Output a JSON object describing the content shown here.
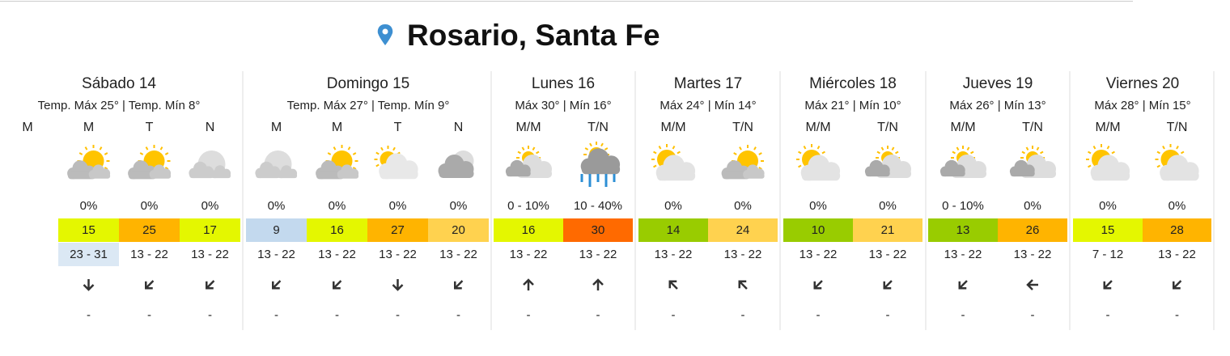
{
  "header": {
    "title": "Rosario, Santa Fe"
  },
  "days": [
    {
      "name": "Sábado 14",
      "summary": "Temp. Máx 25° | Temp. Mín 8°",
      "periods": [
        {
          "label": "M"
        },
        {
          "label": "M",
          "rain": "0%",
          "temp": 15,
          "temp_color": "#e4f700",
          "range": "23 - 31",
          "range_color": "#dbe8f4",
          "extra": "-"
        },
        {
          "label": "T",
          "rain": "0%",
          "temp": 25,
          "temp_color": "#ffb400",
          "range": "13 - 22",
          "extra": "-"
        },
        {
          "label": "N",
          "rain": "0%",
          "temp": 17,
          "temp_color": "#e4f700",
          "range": "13 - 22",
          "extra": "-"
        }
      ]
    },
    {
      "name": "Domingo 15",
      "summary": "Temp. Máx 27° | Temp. Mín 9°",
      "periods": [
        {
          "label": "M",
          "rain": "0%",
          "temp": 9,
          "temp_color": "#c3d9ee",
          "range": "13 - 22",
          "extra": "-"
        },
        {
          "label": "M",
          "rain": "0%",
          "temp": 16,
          "temp_color": "#e4f700",
          "range": "13 - 22",
          "extra": "-"
        },
        {
          "label": "T",
          "rain": "0%",
          "temp": 27,
          "temp_color": "#ffb400",
          "range": "13 - 22",
          "extra": "-"
        },
        {
          "label": "N",
          "rain": "0%",
          "temp": 20,
          "temp_color": "#ffd24f",
          "range": "13 - 22",
          "extra": "-"
        }
      ]
    },
    {
      "name": "Lunes 16",
      "summary": "Máx 30° | Mín 16°",
      "periods": [
        {
          "label": "M/M",
          "rain": "0 - 10%",
          "temp": 16,
          "temp_color": "#e4f700",
          "range": "13 - 22",
          "extra": "-"
        },
        {
          "label": "T/N",
          "rain": "10 - 40%",
          "temp": 30,
          "temp_color": "#ff6a00",
          "range": "13 - 22",
          "extra": "-"
        }
      ]
    },
    {
      "name": "Martes 17",
      "summary": "Máx 24° | Mín 14°",
      "periods": [
        {
          "label": "M/M",
          "rain": "0%",
          "temp": 14,
          "temp_color": "#99cc00",
          "range": "13 - 22",
          "extra": "-"
        },
        {
          "label": "T/N",
          "rain": "0%",
          "temp": 24,
          "temp_color": "#ffd24f",
          "range": "13 - 22",
          "extra": "-"
        }
      ]
    },
    {
      "name": "Miércoles 18",
      "summary": "Máx 21° | Mín 10°",
      "periods": [
        {
          "label": "M/M",
          "rain": "0%",
          "temp": 10,
          "temp_color": "#99cc00",
          "range": "13 - 22",
          "extra": "-"
        },
        {
          "label": "T/N",
          "rain": "0%",
          "temp": 21,
          "temp_color": "#ffd24f",
          "range": "13 - 22",
          "extra": "-"
        }
      ]
    },
    {
      "name": "Jueves 19",
      "summary": "Máx 26° | Mín 13°",
      "periods": [
        {
          "label": "M/M",
          "rain": "0 - 10%",
          "temp": 13,
          "temp_color": "#99cc00",
          "range": "13 - 22",
          "extra": "-"
        },
        {
          "label": "T/N",
          "rain": "0%",
          "temp": 26,
          "temp_color": "#ffb400",
          "range": "13 - 22",
          "extra": "-"
        }
      ]
    },
    {
      "name": "Viernes 20",
      "summary": "Máx 28° | Mín 15°",
      "periods": [
        {
          "label": "M/M",
          "rain": "0%",
          "temp": 15,
          "temp_color": "#e4f700",
          "range": "7 - 12",
          "extra": "-"
        },
        {
          "label": "T/N",
          "rain": "0%",
          "temp": 28,
          "temp_color": "#ffb400",
          "range": "13 - 22",
          "extra": "-"
        }
      ]
    }
  ]
}
